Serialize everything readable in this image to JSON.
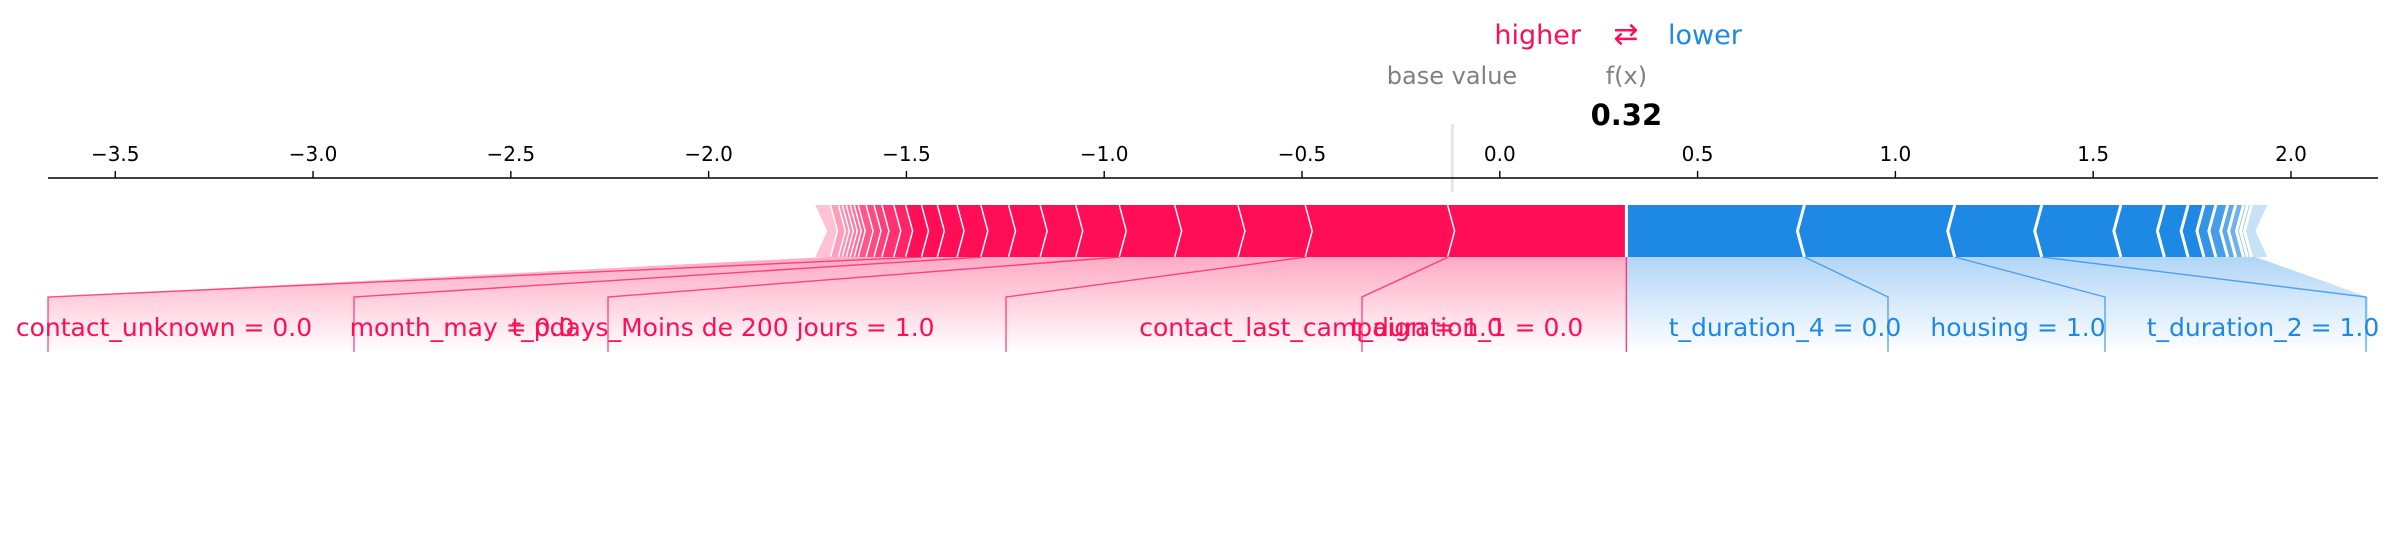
{
  "chart_data": {
    "type": "force",
    "legend": {
      "higher": "higher",
      "arrows": "⇄",
      "lower": "lower"
    },
    "base_value_label": "base value",
    "fx_label": "f(x)",
    "fx_value_text": "0.32",
    "fx_value": 0.32,
    "base_value": -0.12,
    "xlim": [
      -3.67,
      2.22
    ],
    "ticks": [
      {
        "v": -3.5,
        "t": "−3.5"
      },
      {
        "v": -3.0,
        "t": "−3.0"
      },
      {
        "v": -2.5,
        "t": "−2.5"
      },
      {
        "v": -2.0,
        "t": "−2.0"
      },
      {
        "v": -1.5,
        "t": "−1.5"
      },
      {
        "v": -1.0,
        "t": "−1.0"
      },
      {
        "v": -0.5,
        "t": "−0.5"
      },
      {
        "v": 0.0,
        "t": "0.0"
      },
      {
        "v": 0.5,
        "t": "0.5"
      },
      {
        "v": 1.0,
        "t": "1.0"
      },
      {
        "v": 1.5,
        "t": "1.5"
      },
      {
        "v": 2.0,
        "t": "2.0"
      }
    ],
    "higher_boundaries": [
      -1.7,
      -1.69,
      -1.67,
      -1.66,
      -1.65,
      -1.64,
      -1.63,
      -1.62,
      -1.6,
      -1.58,
      -1.56,
      -1.53,
      -1.5,
      -1.46,
      -1.42,
      -1.37,
      -1.31,
      -1.24,
      -1.16,
      -1.07,
      -0.96,
      -0.82,
      -0.66,
      -0.49,
      -0.13,
      0.32
    ],
    "lower_boundaries": [
      0.32,
      0.77,
      1.15,
      1.37,
      1.57,
      1.68,
      1.74,
      1.78,
      1.81,
      1.84,
      1.86,
      1.88,
      1.89,
      1.9,
      1.91
    ],
    "higher_features": [
      {
        "label": "t_duration_1 = 0.0",
        "from": -0.49,
        "to": -0.13
      },
      {
        "label": "contact_last_campaign = 1.0",
        "from": -0.82,
        "to": -0.49
      },
      {
        "label": "t_pdays_Moins de 200 jours = 1.0",
        "from": -1.07,
        "to": -0.96
      },
      {
        "label": "month_may = 0.0",
        "from": -1.37,
        "to": -1.31
      },
      {
        "label": "contact_unknown = 0.0",
        "from": -1.5,
        "to": -1.46
      }
    ],
    "lower_features": [
      {
        "label": "t_duration_4 = 0.0",
        "from": 0.32,
        "to": 0.77
      },
      {
        "label": "housing = 1.0",
        "from": 0.77,
        "to": 1.15
      },
      {
        "label": "t_duration_2 = 1.0",
        "from": 1.15,
        "to": 1.37
      }
    ],
    "colors": {
      "higher": "#ff0d57",
      "lower": "#1e88e5",
      "text_grey": "#808080"
    }
  }
}
